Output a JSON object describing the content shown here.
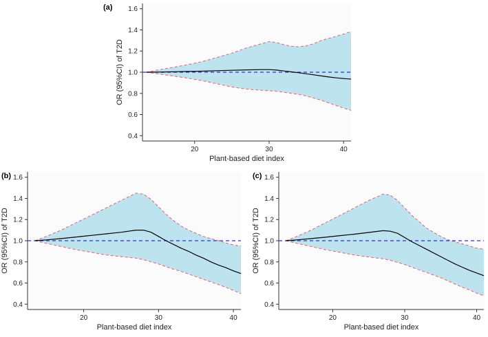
{
  "chart_data": [
    {
      "panel": "(a)",
      "type": "line",
      "title": "",
      "xlabel": "Plant-based diet index",
      "ylabel": "OR (95%CI) of T2D",
      "xlim": [
        13,
        41
      ],
      "ylim": [
        0.35,
        1.65
      ],
      "xticks": [
        20,
        30,
        40
      ],
      "yticks": [
        0.4,
        0.6,
        0.8,
        1.0,
        1.2,
        1.4,
        1.6
      ],
      "reference": 1.0,
      "x": [
        13.5,
        15,
        17,
        19,
        21,
        23,
        25,
        27,
        29,
        30,
        31,
        32,
        33,
        34,
        35,
        36,
        37,
        38,
        39,
        40,
        41
      ],
      "or": [
        1.0,
        1.001,
        1.004,
        1.007,
        1.01,
        1.014,
        1.018,
        1.022,
        1.025,
        1.025,
        1.02,
        1.012,
        1.003,
        0.995,
        0.985,
        0.975,
        0.965,
        0.955,
        0.947,
        0.94,
        0.935
      ],
      "upper": [
        1.0,
        1.02,
        1.045,
        1.07,
        1.1,
        1.14,
        1.18,
        1.23,
        1.27,
        1.29,
        1.28,
        1.26,
        1.245,
        1.24,
        1.25,
        1.27,
        1.3,
        1.32,
        1.34,
        1.36,
        1.385
      ],
      "lower": [
        1.0,
        0.985,
        0.965,
        0.945,
        0.92,
        0.89,
        0.86,
        0.84,
        0.83,
        0.825,
        0.82,
        0.81,
        0.8,
        0.79,
        0.775,
        0.755,
        0.735,
        0.71,
        0.685,
        0.66,
        0.64
      ]
    },
    {
      "panel": "(b)",
      "type": "line",
      "title": "",
      "xlabel": "Plant-based diet index",
      "ylabel": "OR (95%CI) of T2D",
      "xlim": [
        12.5,
        41
      ],
      "ylim": [
        0.35,
        1.65
      ],
      "xticks": [
        20,
        30,
        40
      ],
      "yticks": [
        0.4,
        0.6,
        0.8,
        1.0,
        1.2,
        1.4,
        1.6
      ],
      "reference": 1.0,
      "x": [
        13.5,
        15,
        17,
        19,
        21,
        23,
        25,
        27,
        28,
        29,
        30,
        31,
        32,
        33,
        34,
        35,
        36,
        37,
        38,
        39,
        40,
        41
      ],
      "or": [
        1.0,
        1.008,
        1.02,
        1.035,
        1.05,
        1.065,
        1.08,
        1.1,
        1.1,
        1.08,
        1.04,
        1.0,
        0.965,
        0.93,
        0.9,
        0.865,
        0.835,
        0.8,
        0.77,
        0.745,
        0.715,
        0.69
      ],
      "upper": [
        1.0,
        1.04,
        1.1,
        1.17,
        1.24,
        1.31,
        1.38,
        1.45,
        1.44,
        1.39,
        1.32,
        1.25,
        1.19,
        1.14,
        1.1,
        1.07,
        1.04,
        1.02,
        1.0,
        0.98,
        0.96,
        0.95
      ],
      "lower": [
        1.0,
        0.975,
        0.945,
        0.915,
        0.89,
        0.865,
        0.85,
        0.835,
        0.82,
        0.8,
        0.78,
        0.755,
        0.73,
        0.71,
        0.685,
        0.66,
        0.635,
        0.61,
        0.585,
        0.56,
        0.53,
        0.5
      ]
    },
    {
      "panel": "(c)",
      "type": "line",
      "title": "",
      "xlabel": "Plant-based diet index",
      "ylabel": "OR (95%CI) of T2D",
      "xlim": [
        12.5,
        41
      ],
      "ylim": [
        0.35,
        1.65
      ],
      "xticks": [
        20,
        30,
        40
      ],
      "yticks": [
        0.4,
        0.6,
        0.8,
        1.0,
        1.2,
        1.4,
        1.6
      ],
      "reference": 1.0,
      "x": [
        13.5,
        15,
        17,
        19,
        21,
        23,
        25,
        27,
        28,
        29,
        30,
        31,
        32,
        33,
        34,
        35,
        36,
        37,
        38,
        39,
        40,
        41
      ],
      "or": [
        1.0,
        1.008,
        1.02,
        1.033,
        1.048,
        1.062,
        1.078,
        1.095,
        1.09,
        1.07,
        1.03,
        0.99,
        0.955,
        0.92,
        0.885,
        0.85,
        0.815,
        0.78,
        0.75,
        0.72,
        0.695,
        0.67
      ],
      "upper": [
        1.0,
        1.04,
        1.1,
        1.17,
        1.24,
        1.31,
        1.38,
        1.44,
        1.43,
        1.38,
        1.31,
        1.24,
        1.18,
        1.12,
        1.08,
        1.04,
        1.01,
        0.99,
        0.97,
        0.95,
        0.93,
        0.92
      ],
      "lower": [
        1.0,
        0.975,
        0.945,
        0.915,
        0.89,
        0.865,
        0.845,
        0.83,
        0.815,
        0.795,
        0.775,
        0.75,
        0.725,
        0.7,
        0.675,
        0.65,
        0.62,
        0.59,
        0.56,
        0.535,
        0.505,
        0.48
      ]
    }
  ]
}
